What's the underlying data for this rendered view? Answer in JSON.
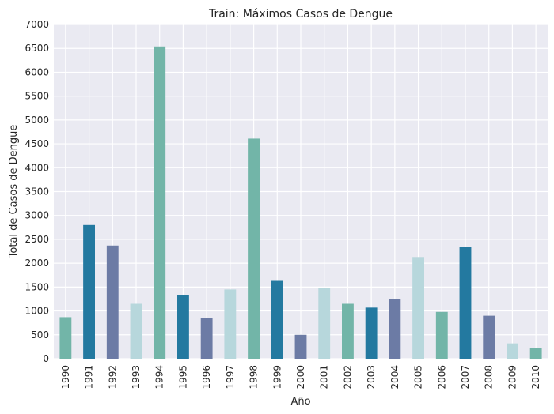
{
  "chart_data": {
    "type": "bar",
    "title": "Train: Máximos Casos de Dengue",
    "xlabel": "Año",
    "ylabel": "Total de Casos de Dengue",
    "categories": [
      "1990",
      "1991",
      "1992",
      "1993",
      "1994",
      "1995",
      "1996",
      "1997",
      "1998",
      "1999",
      "2000",
      "2001",
      "2002",
      "2003",
      "2004",
      "2005",
      "2006",
      "2007",
      "2008",
      "2009",
      "2010"
    ],
    "values": [
      870,
      2800,
      2370,
      1150,
      6540,
      1330,
      850,
      1450,
      4610,
      1630,
      500,
      1480,
      1150,
      1070,
      1250,
      2130,
      980,
      2340,
      900,
      320,
      220
    ],
    "ylim": [
      0,
      7000
    ],
    "yticks": [
      0,
      500,
      1000,
      1500,
      2000,
      2500,
      3000,
      3500,
      4000,
      4500,
      5000,
      5500,
      6000,
      6500,
      7000
    ],
    "grid": true,
    "colors": [
      "#72b5a8",
      "#2379a0",
      "#6c7ba5",
      "#b7d7dc"
    ],
    "background": "#eaeaf2"
  }
}
